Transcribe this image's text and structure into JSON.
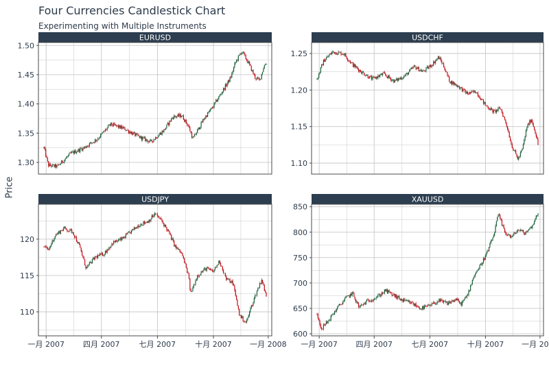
{
  "title": "Four Currencies Candlestick Chart",
  "subtitle": "Experimenting with Multiple Instruments",
  "ylabel": "Price",
  "colors": {
    "strip": "#2c3e50",
    "up": "#1a5e3a",
    "down": "#c0101a",
    "grid": "#c8c8c8",
    "panel_border": "#4a4a4a"
  },
  "chart_data": {
    "type": "candlestick",
    "grid": true,
    "x_tick_labels": [
      "一月 2007",
      "四月 2007",
      "七月 2007",
      "十月 2007",
      "一月 2008"
    ],
    "panels": [
      {
        "name": "EURUSD",
        "ylim": [
          1.28,
          1.505
        ],
        "y_ticks": [
          "1.30",
          "1.35",
          "1.40",
          "1.45",
          "1.50"
        ],
        "y_values": [
          1.3,
          1.35,
          1.4,
          1.45,
          1.5
        ],
        "path": [
          [
            0,
            1.325
          ],
          [
            0.02,
            1.295
          ],
          [
            0.06,
            1.293
          ],
          [
            0.12,
            1.315
          ],
          [
            0.18,
            1.325
          ],
          [
            0.24,
            1.34
          ],
          [
            0.3,
            1.365
          ],
          [
            0.36,
            1.358
          ],
          [
            0.42,
            1.345
          ],
          [
            0.48,
            1.335
          ],
          [
            0.54,
            1.355
          ],
          [
            0.58,
            1.378
          ],
          [
            0.62,
            1.38
          ],
          [
            0.65,
            1.362
          ],
          [
            0.67,
            1.34
          ],
          [
            0.72,
            1.375
          ],
          [
            0.76,
            1.395
          ],
          [
            0.8,
            1.42
          ],
          [
            0.84,
            1.445
          ],
          [
            0.86,
            1.47
          ],
          [
            0.89,
            1.49
          ],
          [
            0.92,
            1.47
          ],
          [
            0.95,
            1.445
          ],
          [
            0.97,
            1.44
          ],
          [
            0.99,
            1.465
          ],
          [
            1.0,
            1.47
          ]
        ]
      },
      {
        "name": "USDCHF",
        "ylim": [
          1.085,
          1.265
        ],
        "y_ticks": [
          "1.10",
          "1.15",
          "1.20",
          "1.25"
        ],
        "y_values": [
          1.1,
          1.15,
          1.2,
          1.25
        ],
        "path": [
          [
            0,
            1.215
          ],
          [
            0.03,
            1.24
          ],
          [
            0.07,
            1.252
          ],
          [
            0.12,
            1.25
          ],
          [
            0.16,
            1.235
          ],
          [
            0.2,
            1.225
          ],
          [
            0.25,
            1.215
          ],
          [
            0.3,
            1.222
          ],
          [
            0.35,
            1.212
          ],
          [
            0.4,
            1.22
          ],
          [
            0.44,
            1.232
          ],
          [
            0.48,
            1.225
          ],
          [
            0.52,
            1.235
          ],
          [
            0.55,
            1.245
          ],
          [
            0.57,
            1.235
          ],
          [
            0.6,
            1.212
          ],
          [
            0.64,
            1.205
          ],
          [
            0.68,
            1.195
          ],
          [
            0.72,
            1.198
          ],
          [
            0.76,
            1.18
          ],
          [
            0.8,
            1.17
          ],
          [
            0.83,
            1.175
          ],
          [
            0.86,
            1.15
          ],
          [
            0.88,
            1.125
          ],
          [
            0.91,
            1.105
          ],
          [
            0.93,
            1.12
          ],
          [
            0.95,
            1.15
          ],
          [
            0.97,
            1.16
          ],
          [
            0.99,
            1.14
          ],
          [
            1.0,
            1.125
          ]
        ]
      },
      {
        "name": "USDJPY",
        "ylim": [
          106.7,
          124.8
        ],
        "y_ticks": [
          "110",
          "115",
          "120"
        ],
        "y_values": [
          110,
          115,
          120
        ],
        "path": [
          [
            0,
            119.0
          ],
          [
            0.02,
            118.5
          ],
          [
            0.05,
            120.5
          ],
          [
            0.09,
            121.5
          ],
          [
            0.13,
            121.0
          ],
          [
            0.16,
            119.0
          ],
          [
            0.19,
            116.0
          ],
          [
            0.23,
            117.5
          ],
          [
            0.27,
            118.0
          ],
          [
            0.31,
            119.5
          ],
          [
            0.35,
            120.0
          ],
          [
            0.39,
            121.0
          ],
          [
            0.43,
            122.0
          ],
          [
            0.47,
            122.5
          ],
          [
            0.5,
            123.5
          ],
          [
            0.53,
            122.5
          ],
          [
            0.56,
            121.0
          ],
          [
            0.59,
            119.0
          ],
          [
            0.62,
            118.0
          ],
          [
            0.65,
            115.0
          ],
          [
            0.66,
            112.5
          ],
          [
            0.69,
            115.0
          ],
          [
            0.73,
            116.0
          ],
          [
            0.76,
            115.5
          ],
          [
            0.79,
            117.0
          ],
          [
            0.82,
            114.5
          ],
          [
            0.85,
            114.0
          ],
          [
            0.88,
            109.5
          ],
          [
            0.91,
            108.5
          ],
          [
            0.93,
            110.5
          ],
          [
            0.96,
            113.0
          ],
          [
            0.98,
            114.5
          ],
          [
            1.0,
            112.0
          ]
        ]
      },
      {
        "name": "XAUUSD",
        "ylim": [
          596,
          855
        ],
        "y_ticks": [
          "600",
          "650",
          "700",
          "750",
          "800",
          "850"
        ],
        "y_values": [
          600,
          650,
          700,
          750,
          800,
          850
        ],
        "path": [
          [
            0,
            640
          ],
          [
            0.02,
            610
          ],
          [
            0.05,
            625
          ],
          [
            0.09,
            650
          ],
          [
            0.13,
            670
          ],
          [
            0.16,
            680
          ],
          [
            0.19,
            652
          ],
          [
            0.23,
            665
          ],
          [
            0.27,
            672
          ],
          [
            0.31,
            685
          ],
          [
            0.35,
            675
          ],
          [
            0.39,
            665
          ],
          [
            0.43,
            660
          ],
          [
            0.47,
            650
          ],
          [
            0.51,
            655
          ],
          [
            0.55,
            665
          ],
          [
            0.59,
            660
          ],
          [
            0.63,
            668
          ],
          [
            0.65,
            658
          ],
          [
            0.68,
            675
          ],
          [
            0.71,
            715
          ],
          [
            0.74,
            735
          ],
          [
            0.77,
            760
          ],
          [
            0.8,
            795
          ],
          [
            0.82,
            835
          ],
          [
            0.85,
            800
          ],
          [
            0.88,
            790
          ],
          [
            0.91,
            805
          ],
          [
            0.94,
            798
          ],
          [
            0.97,
            810
          ],
          [
            1.0,
            838
          ]
        ]
      }
    ]
  }
}
